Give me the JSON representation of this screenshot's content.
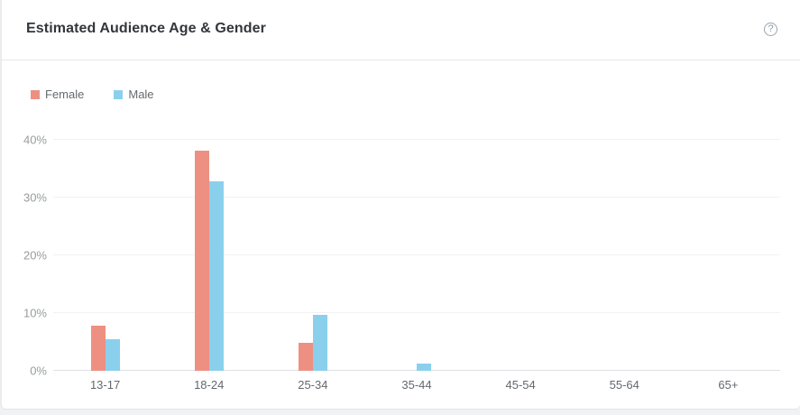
{
  "header": {
    "title": "Estimated Audience Age & Gender",
    "help_icon": "?"
  },
  "chart_data": {
    "type": "bar",
    "title": "Estimated Audience Age & Gender",
    "categories": [
      "13-17",
      "18-24",
      "25-34",
      "35-44",
      "45-54",
      "55-64",
      "65+"
    ],
    "series": [
      {
        "name": "Female",
        "color": "#ed9082",
        "values": [
          7.8,
          38.2,
          4.8,
          0,
          0,
          0,
          0
        ]
      },
      {
        "name": "Male",
        "color": "#8ad0ed",
        "values": [
          5.4,
          32.8,
          9.7,
          1.2,
          0,
          0,
          0
        ]
      }
    ],
    "xlabel": "",
    "ylabel": "",
    "ylim": [
      0,
      40
    ],
    "yticks": [
      0,
      10,
      20,
      30,
      40
    ],
    "ytick_suffix": "%",
    "grid": true,
    "legend_position": "top-left"
  }
}
